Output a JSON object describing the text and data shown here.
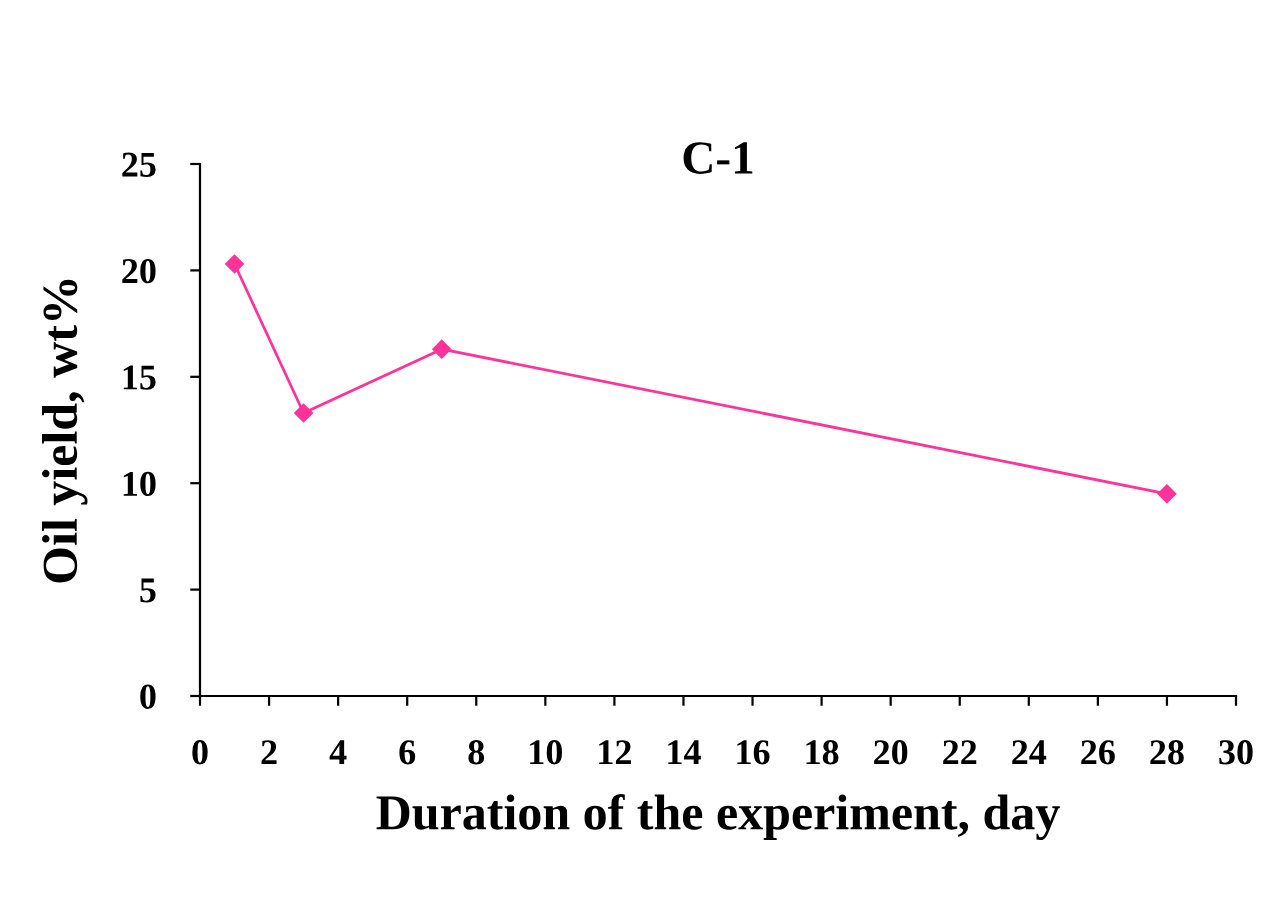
{
  "chart_data": {
    "type": "line",
    "title": "C-1",
    "xlabel": "Duration of the experiment, day",
    "ylabel": "Oil yield, wt%",
    "x": [
      1,
      3,
      7,
      28
    ],
    "series": [
      {
        "color": "#ff3399",
        "values": [
          20.3,
          13.3,
          16.3,
          9.5
        ]
      }
    ],
    "xlim": [
      0,
      30
    ],
    "xticks": [
      0,
      2,
      4,
      6,
      8,
      10,
      12,
      14,
      16,
      18,
      20,
      22,
      24,
      26,
      28,
      30
    ],
    "ylim": [
      0,
      25
    ],
    "yticks": [
      0,
      5,
      10,
      15,
      20,
      25
    ],
    "marker": "diamond",
    "line_style": "solid",
    "grid": false,
    "legend": false
  }
}
